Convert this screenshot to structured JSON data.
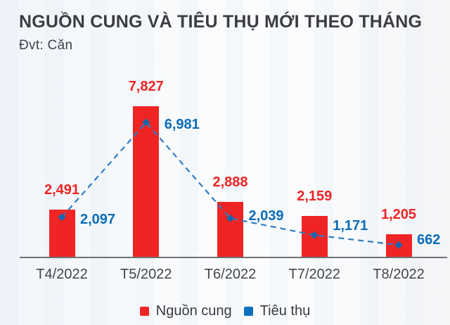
{
  "header": {
    "unit_label": "Đvt: Căn"
  },
  "colors": {
    "title": "#3c3c43",
    "axis_line": "#717176",
    "tick_label": "#45454c"
  },
  "chart_data": {
    "type": "bar",
    "title": "NGUỒN CUNG VÀ TIÊU THỤ MỚI THEO THÁNG",
    "unit": "Căn",
    "categories": [
      "T4/2022",
      "T5/2022",
      "T6/2022",
      "T7/2022",
      "T8/2022"
    ],
    "series": [
      {
        "name": "Nguồn cung",
        "type": "bar",
        "color": "#ee2524",
        "legend_color": "#ee2524",
        "values": [
          2491,
          7827,
          2888,
          2159,
          1205
        ]
      },
      {
        "name": "Tiêu thụ",
        "type": "line",
        "line_style": "dashed",
        "color": "#2e7cc4",
        "marker": "diamond",
        "marker_color": "#1565af",
        "label_color": "#0b6cb8",
        "legend_color": "#0b70bd",
        "values": [
          2097,
          6981,
          2039,
          1171,
          662
        ]
      }
    ],
    "value_label_format": "#,###",
    "ylim": [
      0,
      8300
    ],
    "grid": false,
    "legend_position": "bottom"
  }
}
